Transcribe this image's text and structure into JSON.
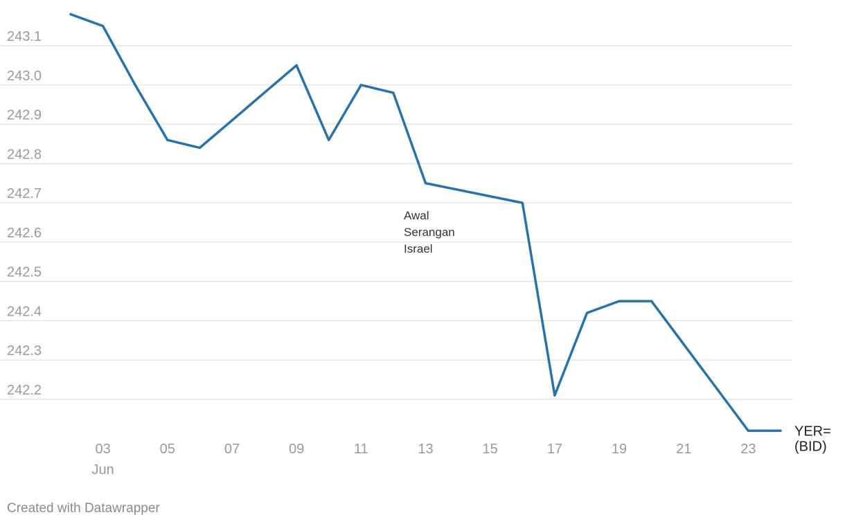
{
  "chart_data": {
    "type": "line",
    "title": "",
    "xlabel": "",
    "ylabel": "",
    "ylim": [
      242.1,
      243.18
    ],
    "yticks": [
      "242.2",
      "242.3",
      "242.4",
      "242.5",
      "242.6",
      "242.7",
      "242.8",
      "242.9",
      "243.0",
      "243.1"
    ],
    "x_ticks": [
      {
        "day": 3,
        "label": "03",
        "month": "Jun"
      },
      {
        "day": 5,
        "label": "05"
      },
      {
        "day": 7,
        "label": "07"
      },
      {
        "day": 9,
        "label": "09"
      },
      {
        "day": 11,
        "label": "11"
      },
      {
        "day": 13,
        "label": "13"
      },
      {
        "day": 15,
        "label": "15"
      },
      {
        "day": 17,
        "label": "17"
      },
      {
        "day": 19,
        "label": "19"
      },
      {
        "day": 21,
        "label": "21"
      },
      {
        "day": 23,
        "label": "23"
      }
    ],
    "xlim_days": [
      2,
      24
    ],
    "grid": true,
    "series": [
      {
        "name": "YER= (BID)",
        "label_lines": [
          "YER=",
          "(BID)"
        ],
        "color": "#2872ab",
        "x": [
          "2025-06-02",
          "2025-06-03",
          "2025-06-04",
          "2025-06-05",
          "2025-06-06",
          "2025-06-07",
          "2025-06-08",
          "2025-06-09",
          "2025-06-10",
          "2025-06-11",
          "2025-06-12",
          "2025-06-13",
          "2025-06-16",
          "2025-06-17",
          "2025-06-18",
          "2025-06-19",
          "2025-06-20",
          "2025-06-23",
          "2025-06-24"
        ],
        "days": [
          2,
          3,
          4,
          5,
          6,
          7,
          8,
          9,
          10,
          11,
          12,
          13,
          16,
          17,
          18,
          19,
          20,
          23,
          24
        ],
        "values": [
          243.18,
          243.15,
          243.0,
          242.86,
          242.84,
          242.91,
          242.98,
          243.05,
          242.86,
          243.0,
          242.98,
          242.75,
          242.7,
          242.21,
          242.42,
          242.45,
          242.45,
          242.12,
          242.12
        ]
      }
    ],
    "annotations": [
      {
        "lines": [
          "Awal",
          "Serangan",
          "Israel"
        ]
      }
    ]
  },
  "footer": {
    "credit": "Created with Datawrapper"
  }
}
